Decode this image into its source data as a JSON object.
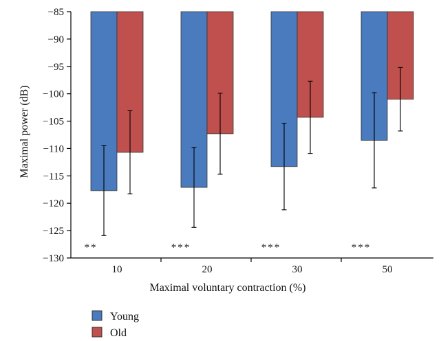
{
  "chart_data": {
    "type": "bar",
    "xlabel": "Maximal voluntary contraction (%)",
    "ylabel": "Maximal power (dB)",
    "categories": [
      "10",
      "20",
      "30",
      "50"
    ],
    "ylim": [
      -130,
      -85
    ],
    "yticks": [
      -85,
      -90,
      -95,
      -100,
      -105,
      -110,
      -115,
      -120,
      -125,
      -130
    ],
    "ytick_labels": [
      "−85",
      "−90",
      "−95",
      "−100",
      "−105",
      "−110",
      "−115",
      "−120",
      "−125",
      "−130"
    ],
    "bar_baseline": -85,
    "series": [
      {
        "name": "Young",
        "color": "#4a7bbf",
        "values": [
          -117.7,
          -117.1,
          -113.3,
          -108.5
        ],
        "errors": [
          8.2,
          7.3,
          7.9,
          8.7
        ]
      },
      {
        "name": "Old",
        "color": "#c0504d",
        "values": [
          -110.7,
          -107.3,
          -104.3,
          -101.0
        ],
        "errors": [
          7.6,
          7.4,
          6.6,
          5.8
        ]
      }
    ],
    "significance": [
      "**",
      "***",
      "***",
      "***"
    ],
    "legend_position": "bottom-left",
    "grid": false
  }
}
